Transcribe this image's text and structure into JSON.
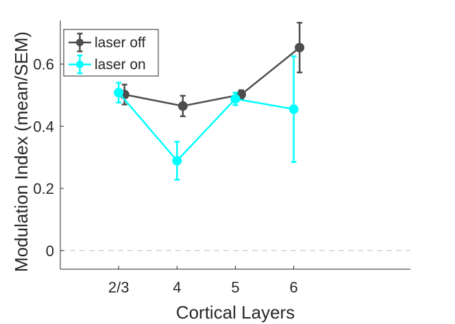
{
  "chart_data": {
    "type": "line",
    "xlabel": "Cortical Layers",
    "ylabel": "Modulation Index (mean/SEM)",
    "categories": [
      "2/3",
      "4",
      "5",
      "6"
    ],
    "xlim": [
      1,
      7
    ],
    "ylim": [
      -0.06,
      0.74
    ],
    "yticks": [
      "0",
      "0.2",
      "0.4",
      "0.6"
    ],
    "ytick_values": [
      0,
      0.2,
      0.4,
      0.6
    ],
    "reference_line": {
      "y": 0,
      "style": "dashed",
      "color": "#d0d0d0"
    },
    "legend": {
      "position": "top-left"
    },
    "series": [
      {
        "name": "laser off",
        "color": "#4d4d4d",
        "x": [
          2.1,
          3.1,
          4.1,
          5.1
        ],
        "values": [
          0.502,
          0.465,
          0.502,
          0.653
        ],
        "err": [
          0.032,
          0.033,
          0.014,
          0.08
        ]
      },
      {
        "name": "laser on",
        "color": "#00ffff",
        "x": [
          2.0,
          3.0,
          4.0,
          5.0
        ],
        "values": [
          0.508,
          0.289,
          0.488,
          0.455
        ],
        "err": [
          0.032,
          0.061,
          0.02,
          0.17
        ]
      }
    ]
  }
}
